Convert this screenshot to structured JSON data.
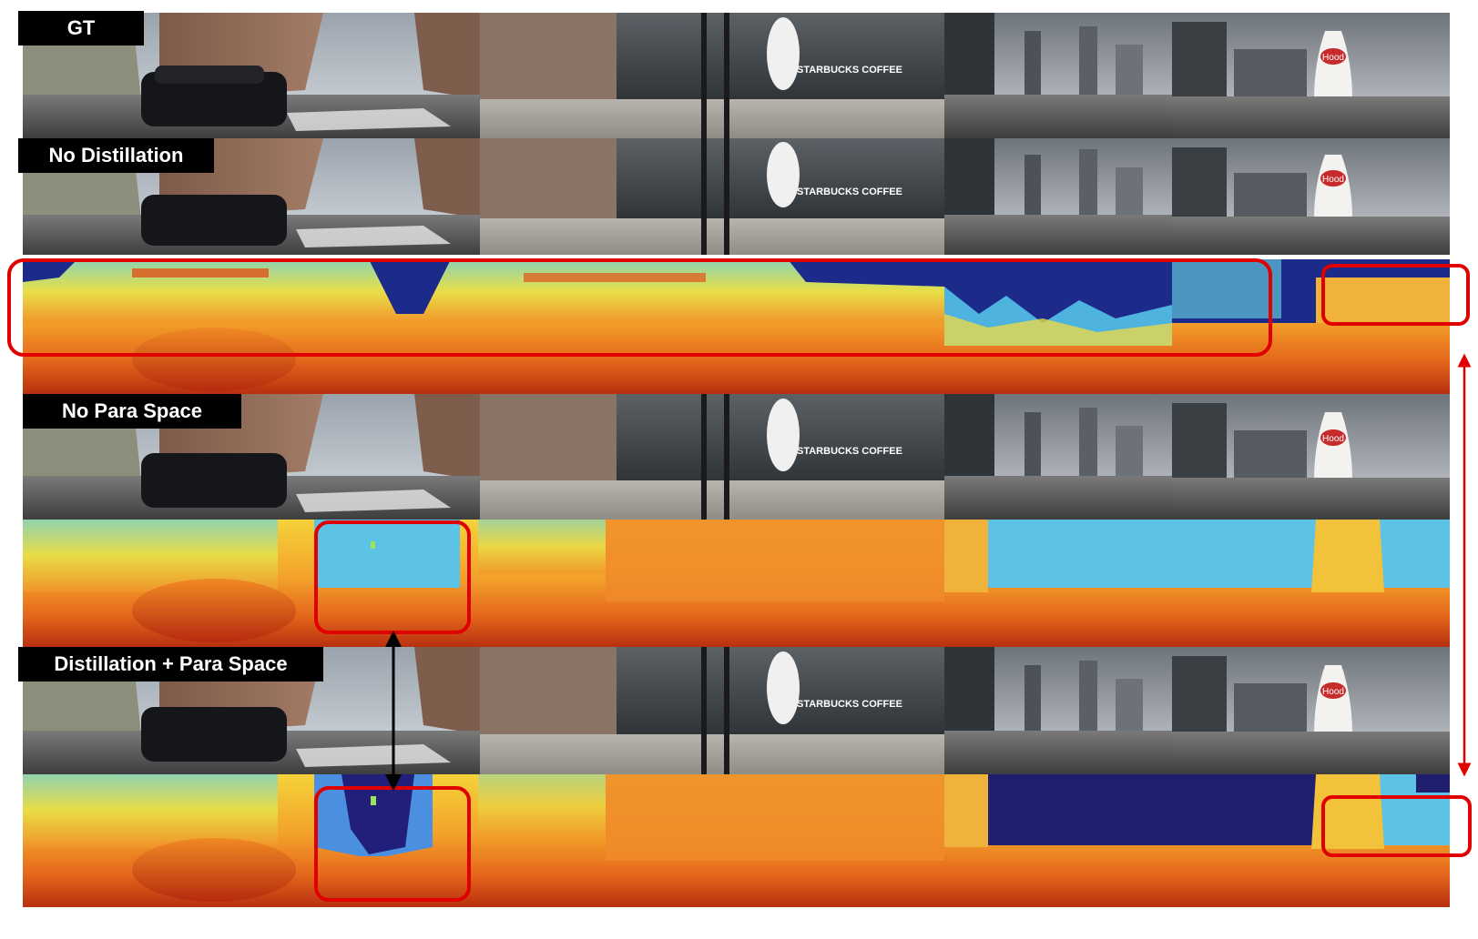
{
  "labels": {
    "gt": "GT",
    "no_distillation": "No Distillation",
    "no_para_space": "No Para Space",
    "distillation_para_space": "Distillation + Para Space"
  },
  "sign_texts": {
    "starbucks": "STARBUCKS COFFEE",
    "hood": "Hood"
  },
  "colors": {
    "highlight_box": "#e00000",
    "comparison_arrow": "#000000",
    "red_arrow": "#e00000",
    "label_background": "#000000",
    "label_text": "#ffffff"
  },
  "rows": [
    {
      "kind": "rgb",
      "variant": "gt"
    },
    {
      "kind": "rgb",
      "variant": "no_distillation"
    },
    {
      "kind": "depth",
      "variant": "no_distillation"
    },
    {
      "kind": "rgb",
      "variant": "no_para_space"
    },
    {
      "kind": "depth",
      "variant": "no_para_space"
    },
    {
      "kind": "rgb",
      "variant": "distillation_para_space"
    },
    {
      "kind": "depth",
      "variant": "distillation_para_space"
    }
  ]
}
